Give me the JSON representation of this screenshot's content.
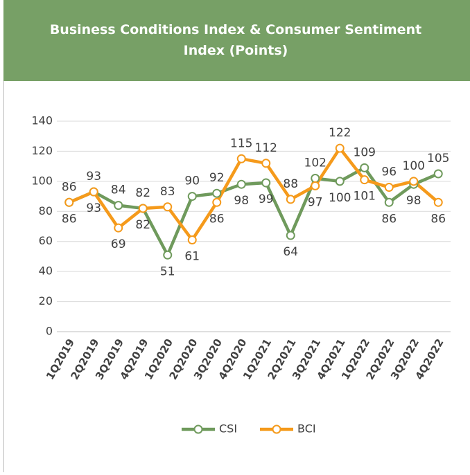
{
  "chart_data": {
    "type": "line",
    "title": "Business Conditions Index & Consumer Sentiment Index (Points)",
    "categories": [
      "1Q2019",
      "2Q2019",
      "3Q2019",
      "4Q2019",
      "1Q2020",
      "2Q2020",
      "3Q2020",
      "4Q2020",
      "1Q2021",
      "2Q2021",
      "3Q2021",
      "4Q2021",
      "1Q2022",
      "2Q2022",
      "3Q2022",
      "4Q2022"
    ],
    "series": [
      {
        "name": "CSI",
        "color": "#6f9a5c",
        "values": [
          86,
          93,
          84,
          82,
          51,
          90,
          92,
          98,
          99,
          64,
          102,
          100,
          109,
          86,
          98,
          105
        ]
      },
      {
        "name": "BCI",
        "color": "#f59a1b",
        "values": [
          86,
          93,
          69,
          82,
          83,
          61,
          86,
          115,
          112,
          88,
          97,
          122,
          101,
          96,
          100,
          86
        ]
      }
    ],
    "ylim": [
      0,
      140
    ],
    "yticks": [
      0,
      20,
      40,
      60,
      80,
      100,
      120,
      140
    ],
    "grid": true,
    "legend": "bottom"
  }
}
